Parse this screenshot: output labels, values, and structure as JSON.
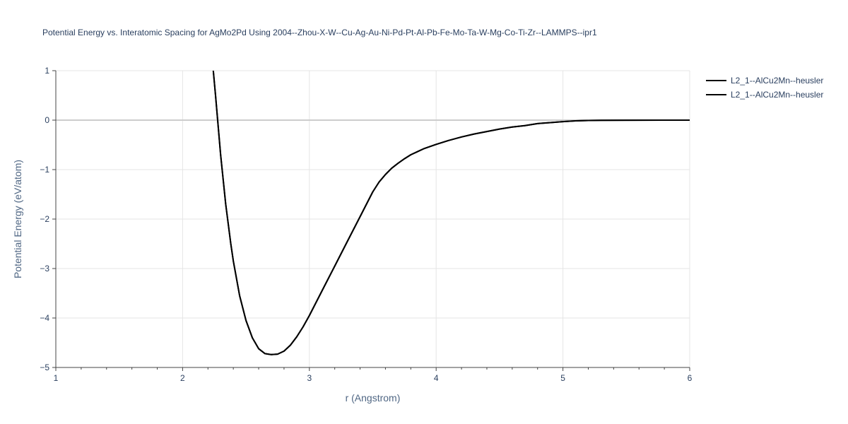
{
  "chart_data": {
    "type": "line",
    "title": "Potential Energy vs. Interatomic Spacing for AgMo2Pd Using 2004--Zhou-X-W--Cu-Ag-Au-Ni-Pd-Pt-Al-Pb-Fe-Mo-Ta-W-Mg-Co-Ti-Zr--LAMMPS--ipr1",
    "xlabel": "r (Angstrom)",
    "ylabel": "Potential Energy (eV/atom)",
    "xlim": [
      1,
      6
    ],
    "ylim": [
      -5,
      1
    ],
    "xticks": [
      1,
      2,
      3,
      4,
      5,
      6
    ],
    "xtick_labels": [
      "1",
      "2",
      "3",
      "4",
      "5",
      "6"
    ],
    "yticks": [
      1,
      0,
      -1,
      -2,
      -3,
      -4,
      -5
    ],
    "ytick_labels": [
      "1",
      "0",
      "−1",
      "−2",
      "−3",
      "−4",
      "−5"
    ],
    "grid": true,
    "legend_position": "top-right",
    "colors": {
      "line": "#000000",
      "grid": "#e5e5e5",
      "zeroline": "#cccccc",
      "text": "#2a3f5f"
    },
    "series": [
      {
        "name": "L2_1--AlCu2Mn--heusler",
        "x": [
          2.24,
          2.26,
          2.28,
          2.3,
          2.32,
          2.34,
          2.36,
          2.38,
          2.4,
          2.45,
          2.5,
          2.55,
          2.6,
          2.65,
          2.7,
          2.75,
          2.8,
          2.85,
          2.9,
          2.95,
          3.0,
          3.1,
          3.2,
          3.3,
          3.4,
          3.5,
          3.55,
          3.6,
          3.65,
          3.7,
          3.75,
          3.8,
          3.85,
          3.9,
          4.0,
          4.1,
          4.2,
          4.3,
          4.4,
          4.5,
          4.6,
          4.7,
          4.8,
          4.9,
          5.0,
          5.1,
          5.2,
          5.3,
          5.5,
          5.8,
          6.0
        ],
        "y": [
          1.05,
          0.5,
          -0.1,
          -0.7,
          -1.2,
          -1.7,
          -2.1,
          -2.5,
          -2.85,
          -3.55,
          -4.05,
          -4.4,
          -4.62,
          -4.72,
          -4.74,
          -4.73,
          -4.67,
          -4.55,
          -4.38,
          -4.18,
          -3.95,
          -3.45,
          -2.95,
          -2.45,
          -1.95,
          -1.45,
          -1.25,
          -1.1,
          -0.97,
          -0.87,
          -0.78,
          -0.7,
          -0.64,
          -0.58,
          -0.49,
          -0.41,
          -0.34,
          -0.28,
          -0.23,
          -0.18,
          -0.14,
          -0.11,
          -0.07,
          -0.05,
          -0.03,
          -0.015,
          -0.007,
          -0.003,
          -0.001,
          0.0,
          0.0
        ]
      },
      {
        "name": "L2_1--AlCu2Mn--heusler",
        "x": [
          2.24,
          2.26,
          2.28,
          2.3,
          2.32,
          2.34,
          2.36,
          2.38,
          2.4,
          2.45,
          2.5,
          2.55,
          2.6,
          2.65,
          2.7,
          2.75,
          2.8,
          2.85,
          2.9,
          2.95,
          3.0,
          3.1,
          3.2,
          3.3,
          3.4,
          3.5,
          3.55,
          3.6,
          3.65,
          3.7,
          3.75,
          3.8,
          3.85,
          3.9,
          4.0,
          4.1,
          4.2,
          4.3,
          4.4,
          4.5,
          4.6,
          4.7,
          4.8,
          4.9,
          5.0,
          5.1,
          5.2,
          5.3,
          5.5,
          5.8,
          6.0
        ],
        "y": [
          1.05,
          0.5,
          -0.1,
          -0.7,
          -1.2,
          -1.7,
          -2.1,
          -2.5,
          -2.85,
          -3.55,
          -4.05,
          -4.4,
          -4.62,
          -4.72,
          -4.74,
          -4.73,
          -4.67,
          -4.55,
          -4.38,
          -4.18,
          -3.95,
          -3.45,
          -2.95,
          -2.45,
          -1.95,
          -1.45,
          -1.25,
          -1.1,
          -0.97,
          -0.87,
          -0.78,
          -0.7,
          -0.64,
          -0.58,
          -0.49,
          -0.41,
          -0.34,
          -0.28,
          -0.23,
          -0.18,
          -0.14,
          -0.11,
          -0.07,
          -0.05,
          -0.03,
          -0.015,
          -0.007,
          -0.003,
          -0.001,
          0.0,
          0.0
        ]
      }
    ]
  }
}
